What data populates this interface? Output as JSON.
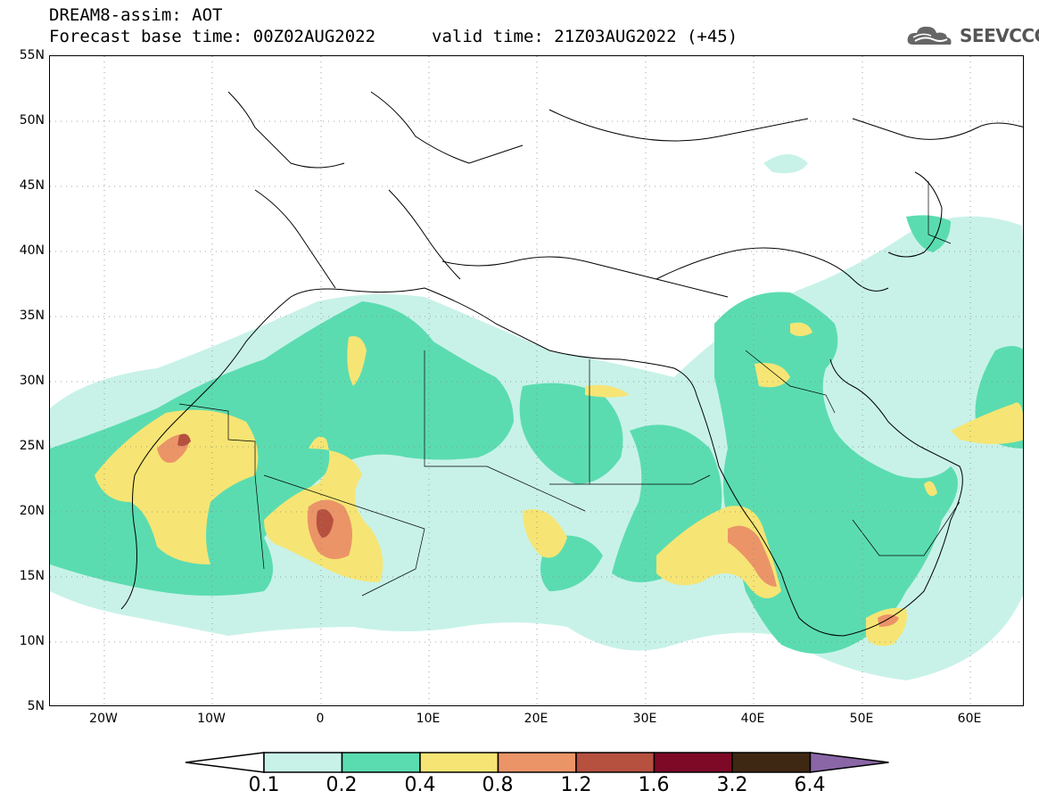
{
  "header": {
    "line1": "DREAM8-assim: AOT",
    "line2_left": "Forecast base time: 00Z02AUG2022",
    "line2_right": "valid time: 21Z03AUG2022 (+45)",
    "logo_text": "SEEVCCC"
  },
  "axes": {
    "lat_labels": [
      "55N",
      "50N",
      "45N",
      "40N",
      "35N",
      "30N",
      "25N",
      "20N",
      "15N",
      "10N",
      "5N"
    ],
    "lon_labels": [
      "20W",
      "10W",
      "0",
      "10E",
      "20E",
      "30E",
      "40E",
      "50E",
      "60E"
    ]
  },
  "legend": {
    "ticks": [
      "0.1",
      "0.2",
      "0.4",
      "0.8",
      "1.2",
      "1.6",
      "3.2",
      "6.4"
    ],
    "colors": [
      "#ffffff",
      "#c8f2e8",
      "#5bdcb0",
      "#f6e574",
      "#eb9468",
      "#b6503f",
      "#7d0926",
      "#3e2813",
      "#8a66a6"
    ]
  },
  "map": {
    "variable": "AOT",
    "lat_range": [
      5,
      55
    ],
    "lon_range": [
      -25,
      65
    ]
  }
}
